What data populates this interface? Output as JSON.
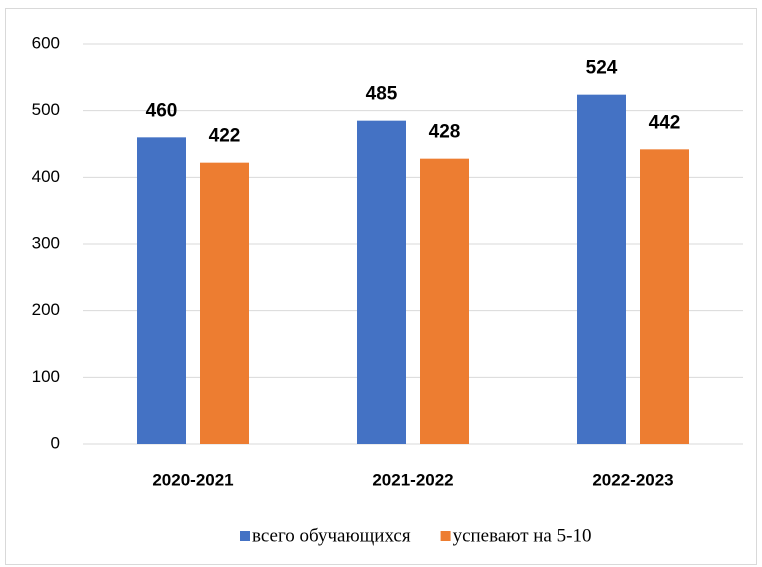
{
  "chart_data": {
    "type": "bar",
    "categories": [
      "2020-2021",
      "2021-2022",
      "2022-2023"
    ],
    "series": [
      {
        "name": "всего обучающихся",
        "color": "#4472c4",
        "values": [
          460,
          485,
          524
        ]
      },
      {
        "name": "успевают на 5-10",
        "color": "#ed7d31",
        "values": [
          422,
          428,
          442
        ]
      }
    ],
    "ylim": [
      0,
      600
    ],
    "yticks": [
      0,
      100,
      200,
      300,
      400,
      500,
      600
    ],
    "grid": true,
    "legend": "bottom"
  }
}
